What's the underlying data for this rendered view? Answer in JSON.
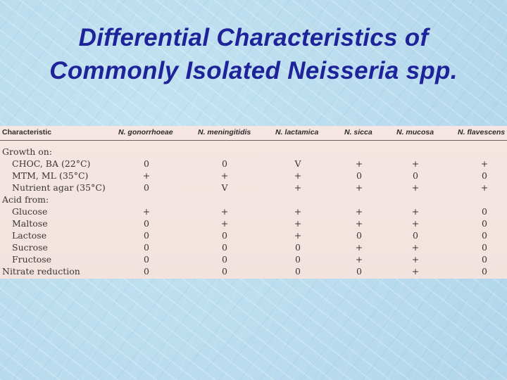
{
  "title": {
    "line1": "Differential Characteristics of",
    "line2": "Commonly Isolated Neisseria spp."
  },
  "table": {
    "columns": [
      "Characteristic",
      "N. gonorrhoeae",
      "N. meningitidis",
      "N. lactamica",
      "N. sicca",
      "N. mucosa",
      "N. flavescens"
    ],
    "rows": [
      {
        "label": "Growth on:",
        "indent": false,
        "values": []
      },
      {
        "label": "CHOC, BA (22°C)",
        "indent": true,
        "values": [
          "0",
          "0",
          "V",
          "+",
          "+",
          "+"
        ]
      },
      {
        "label": "MTM, ML (35°C)",
        "indent": true,
        "values": [
          "+",
          "+",
          "+",
          "0",
          "0",
          "0"
        ]
      },
      {
        "label": "Nutrient agar (35°C)",
        "indent": true,
        "values": [
          "0",
          "V",
          "+",
          "+",
          "+",
          "+"
        ]
      },
      {
        "label": "Acid from:",
        "indent": false,
        "values": []
      },
      {
        "label": "Glucose",
        "indent": true,
        "values": [
          "+",
          "+",
          "+",
          "+",
          "+",
          "0"
        ]
      },
      {
        "label": "Maltose",
        "indent": true,
        "values": [
          "0",
          "+",
          "+",
          "+",
          "+",
          "0"
        ]
      },
      {
        "label": "Lactose",
        "indent": true,
        "values": [
          "0",
          "0",
          "+",
          "0",
          "0",
          "0"
        ]
      },
      {
        "label": "Sucrose",
        "indent": true,
        "values": [
          "0",
          "0",
          "0",
          "+",
          "+",
          "0"
        ]
      },
      {
        "label": "Fructose",
        "indent": true,
        "values": [
          "0",
          "0",
          "0",
          "+",
          "+",
          "0"
        ]
      },
      {
        "label": "Nitrate reduction",
        "indent": false,
        "values": [
          "0",
          "0",
          "0",
          "0",
          "+",
          "0"
        ]
      }
    ]
  }
}
